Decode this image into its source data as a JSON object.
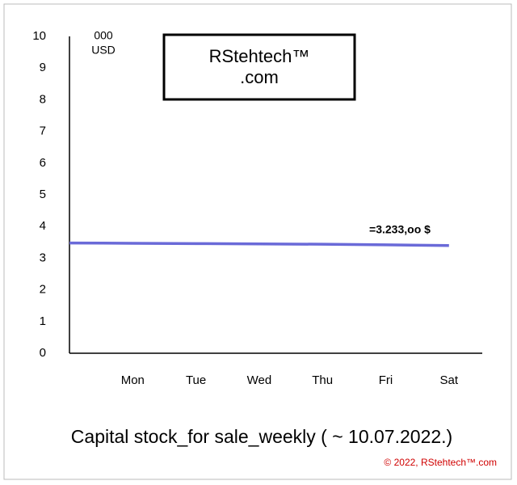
{
  "chart_data": {
    "type": "line",
    "logo": [
      "RStehtech™",
      ".com"
    ],
    "y_unit": [
      "000",
      "USD"
    ],
    "title": "Capital stock_for sale_weekly (      ~ 10.07.2022.)",
    "annotation": "=3.233,oo $",
    "copyright": "© 2022, RStehtech™.com",
    "categories": [
      null,
      "Mon",
      "Tue",
      "Wed",
      "Thu",
      "Fri",
      "Sat"
    ],
    "values": [
      3.48,
      3.47,
      3.46,
      3.45,
      3.44,
      3.42,
      3.4
    ],
    "color": "#6a6ad8",
    "ylim": [
      0,
      10
    ],
    "yticks": [
      0,
      1,
      2,
      3,
      4,
      5,
      6,
      7,
      8,
      9,
      10
    ]
  }
}
